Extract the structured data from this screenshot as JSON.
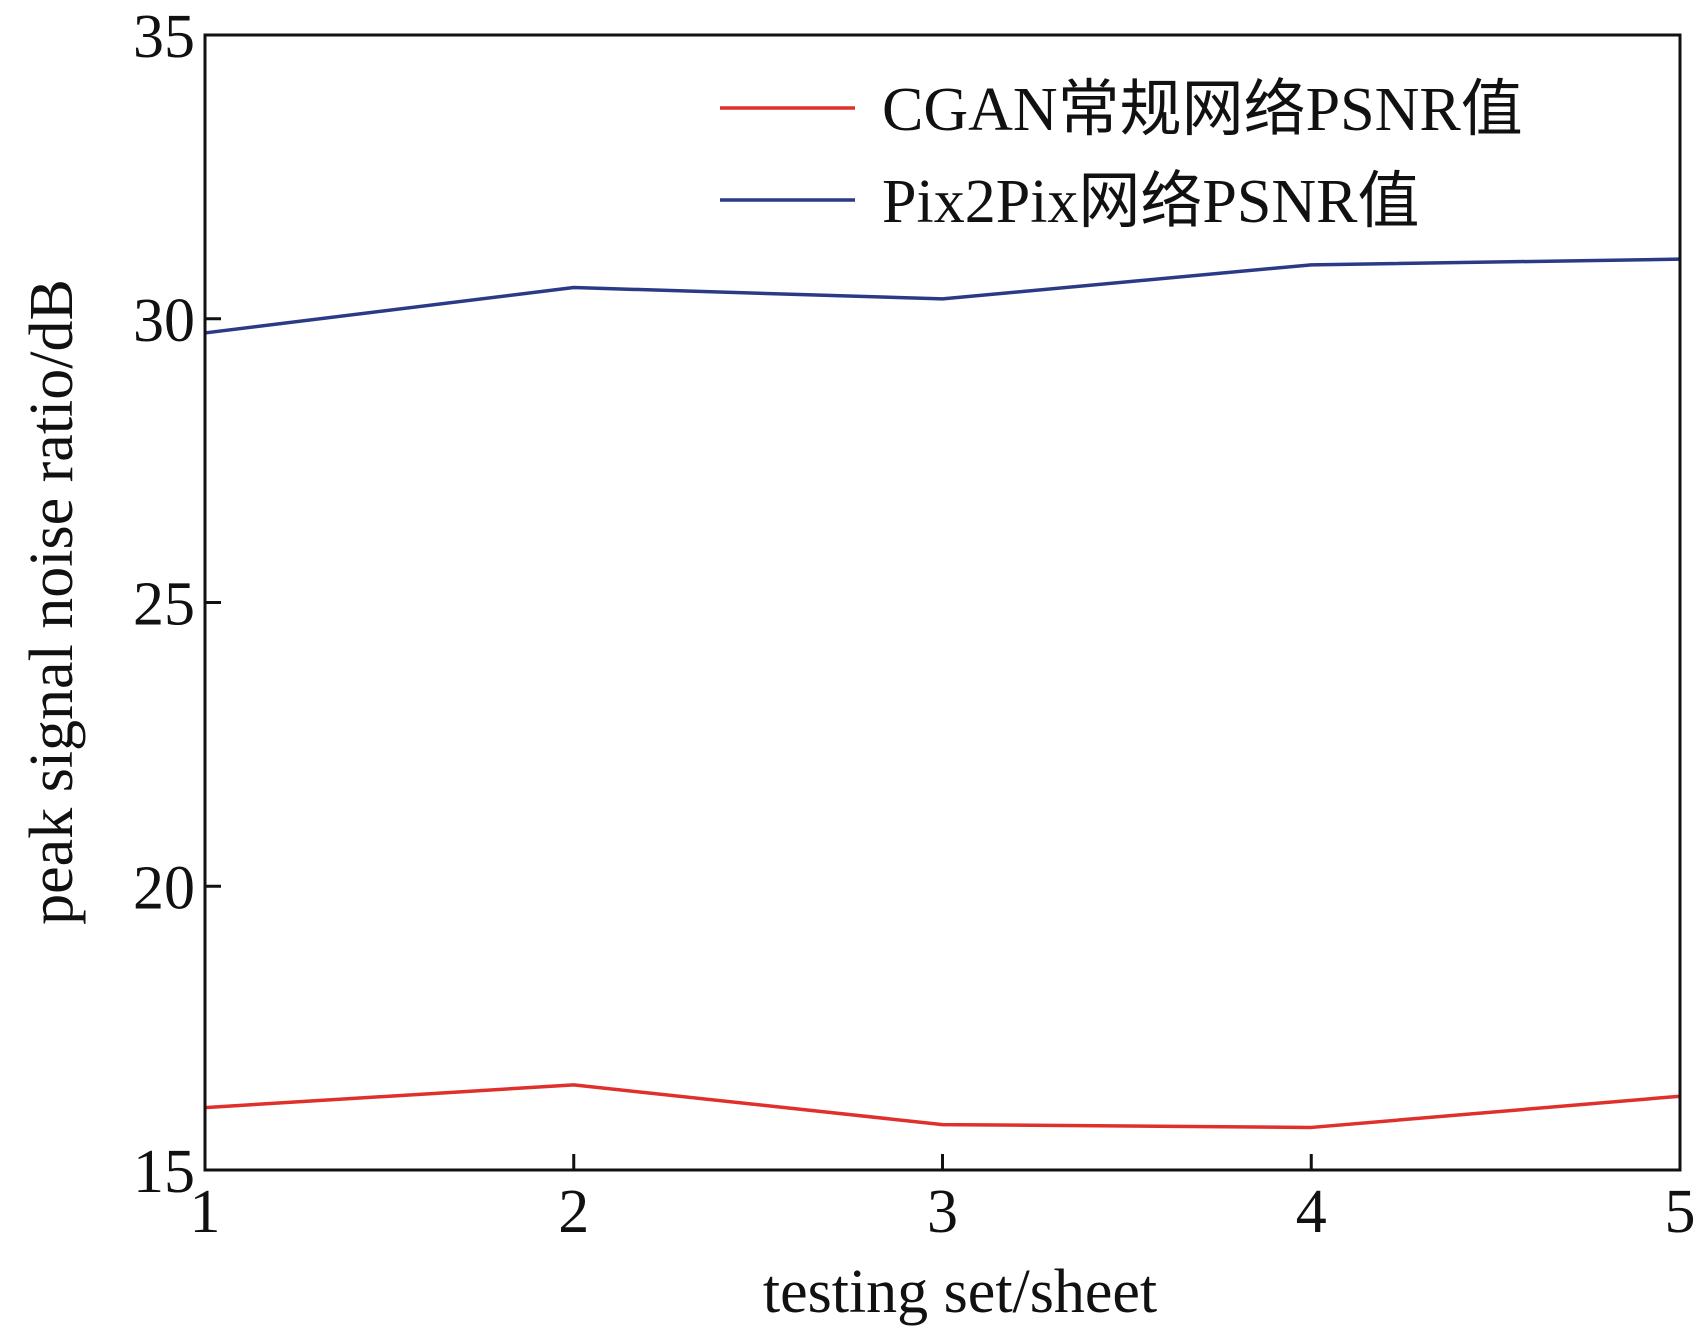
{
  "chart_data": {
    "type": "line",
    "title": "",
    "xlabel": "testing set/sheet",
    "ylabel": "peak signal noise ratio/dB",
    "x": [
      1,
      2,
      3,
      4,
      5
    ],
    "xlim": [
      1,
      5
    ],
    "ylim": [
      15,
      35
    ],
    "xticks": [
      "1",
      "2",
      "3",
      "4",
      "5"
    ],
    "yticks": [
      "15",
      "20",
      "25",
      "30",
      "35"
    ],
    "grid": false,
    "legend_position": "top-right",
    "series": [
      {
        "name": "CGAN常规网络PSNR值",
        "color": "#e0302c",
        "values": [
          16.1,
          16.5,
          15.8,
          15.75,
          16.3
        ]
      },
      {
        "name": "Pix2Pix网络PSNR值",
        "color": "#2b3a86",
        "values": [
          29.75,
          30.55,
          30.35,
          30.95,
          31.05
        ]
      }
    ]
  }
}
